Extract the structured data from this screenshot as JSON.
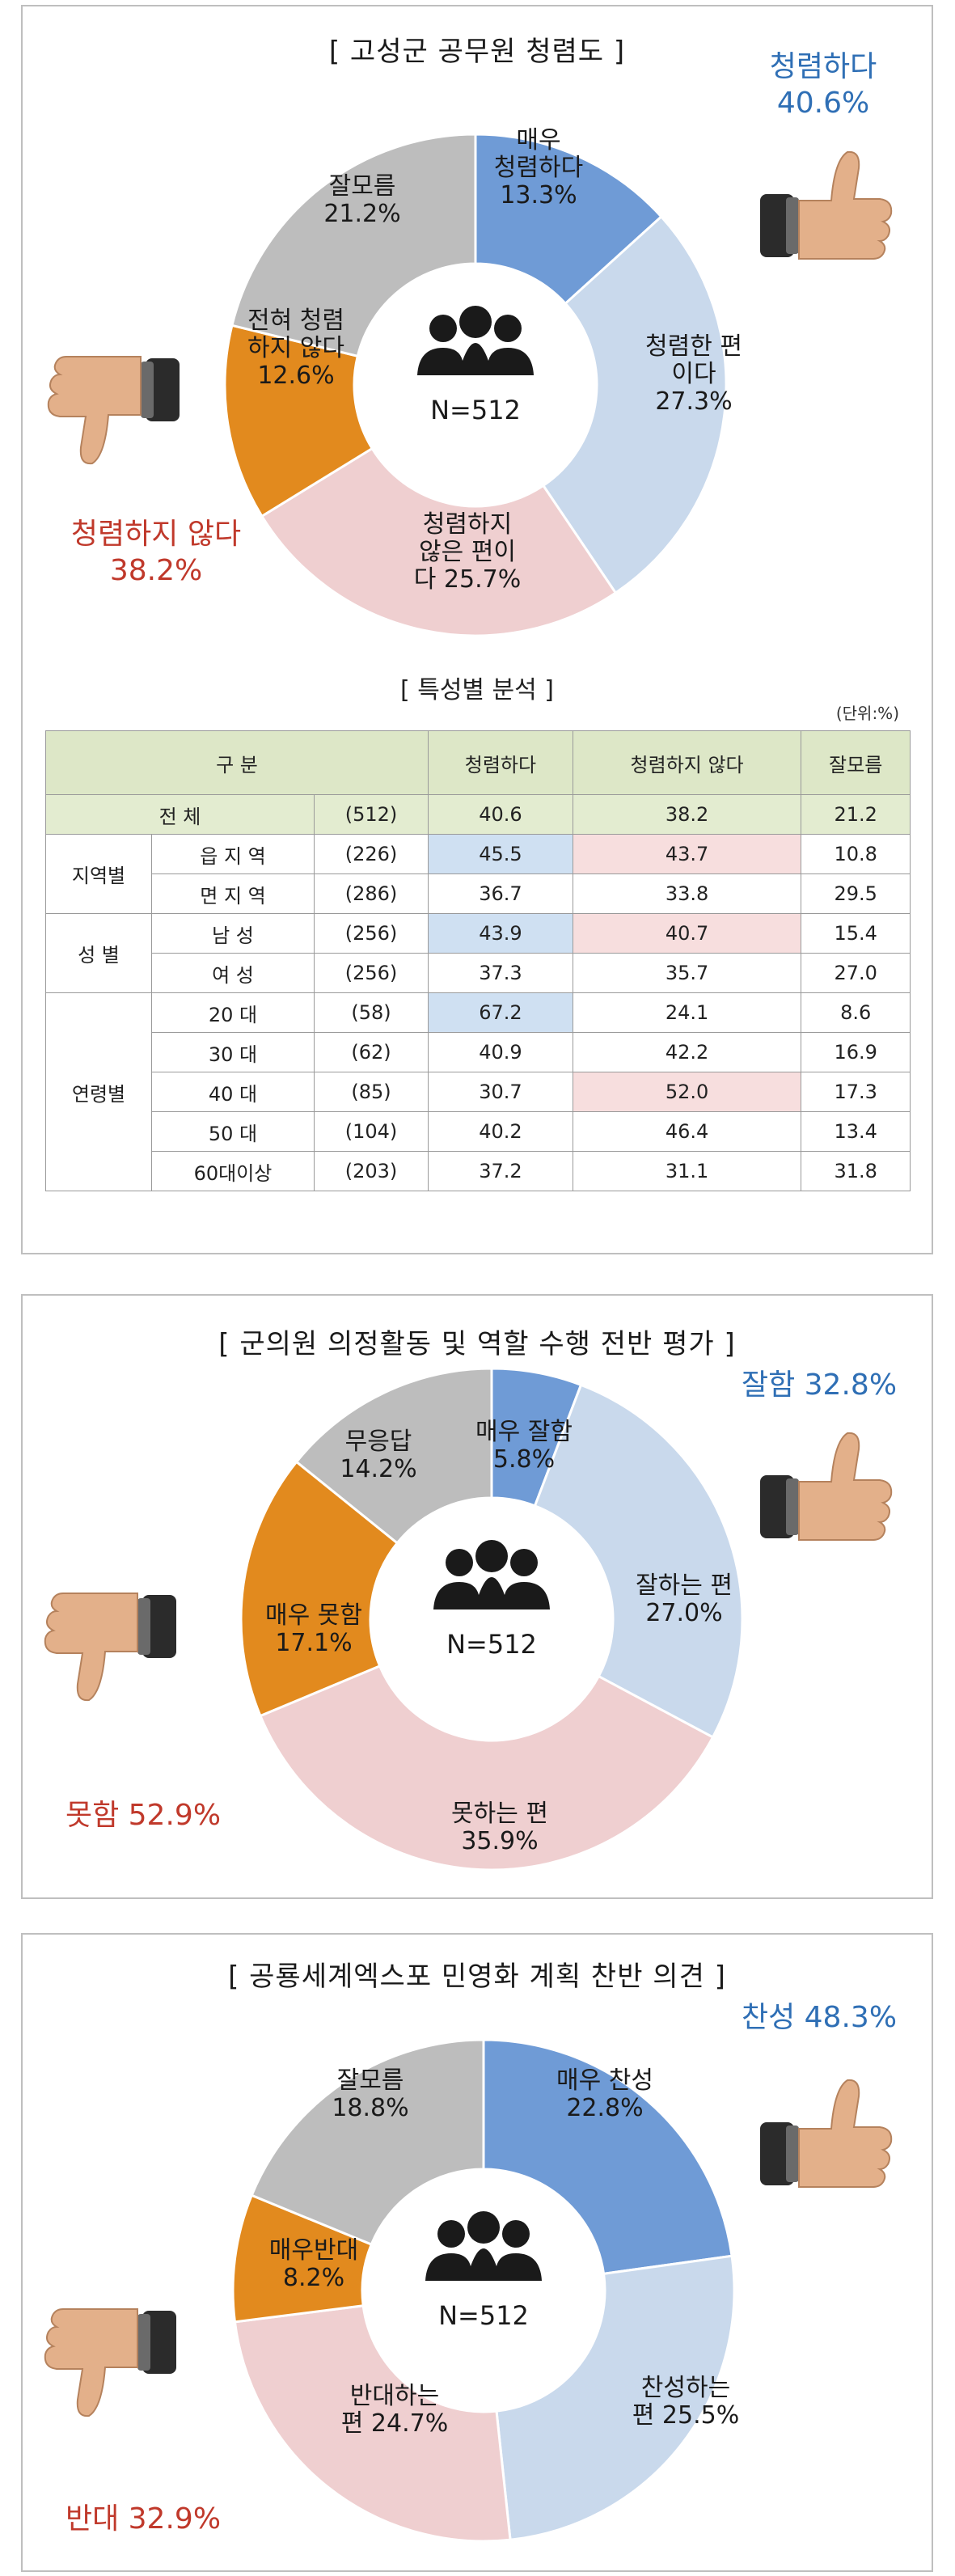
{
  "panel1": {
    "title": "[ 고성군 공무원 청렴도 ]",
    "positive": {
      "label": "청렴하다",
      "value": "40.6%"
    },
    "negative": {
      "label": "청렴하지 않다",
      "value": "38.2%"
    },
    "center": "N=512",
    "table": {
      "title": "[ 특성별 분석 ]",
      "unit": "(단위:%)",
      "headers": [
        "구  분",
        "청렴하다",
        "청렴하지 않다",
        "잘모름"
      ],
      "total": {
        "label": "전      체",
        "n": "(512)",
        "values": [
          "40.6",
          "38.2",
          "21.2"
        ]
      },
      "groups": [
        {
          "name": "지역별",
          "rows": [
            {
              "label": "읍 지 역",
              "n": "(226)",
              "values": [
                "45.5",
                "43.7",
                "10.8"
              ],
              "hl": [
                "b",
                "r",
                ""
              ]
            },
            {
              "label": "면 지 역",
              "n": "(286)",
              "values": [
                "36.7",
                "33.8",
                "29.5"
              ],
              "hl": [
                "",
                "",
                ""
              ]
            }
          ]
        },
        {
          "name": "성  별",
          "rows": [
            {
              "label": "남    성",
              "n": "(256)",
              "values": [
                "43.9",
                "40.7",
                "15.4"
              ],
              "hl": [
                "b",
                "r",
                ""
              ]
            },
            {
              "label": "여    성",
              "n": "(256)",
              "values": [
                "37.3",
                "35.7",
                "27.0"
              ],
              "hl": [
                "",
                "",
                ""
              ]
            }
          ]
        },
        {
          "name": "연령별",
          "rows": [
            {
              "label": "20    대",
              "n": "(58)",
              "values": [
                "67.2",
                "24.1",
                "8.6"
              ],
              "hl": [
                "b",
                "",
                ""
              ]
            },
            {
              "label": "30    대",
              "n": "(62)",
              "values": [
                "40.9",
                "42.2",
                "16.9"
              ],
              "hl": [
                "",
                "",
                ""
              ]
            },
            {
              "label": "40    대",
              "n": "(85)",
              "values": [
                "30.7",
                "52.0",
                "17.3"
              ],
              "hl": [
                "",
                "r",
                ""
              ]
            },
            {
              "label": "50    대",
              "n": "(104)",
              "values": [
                "40.2",
                "46.4",
                "13.4"
              ],
              "hl": [
                "",
                "",
                ""
              ]
            },
            {
              "label": "60대이상",
              "n": "(203)",
              "values": [
                "37.2",
                "31.1",
                "31.8"
              ],
              "hl": [
                "",
                "",
                ""
              ]
            }
          ]
        }
      ]
    }
  },
  "panel2": {
    "title": "[ 군의원 의정활동 및 역할 수행 전반 평가 ]",
    "positive": {
      "label": "잘함",
      "value": "32.8%"
    },
    "negative": {
      "label": "못함",
      "value": "52.9%"
    },
    "center": "N=512"
  },
  "panel3": {
    "title": "[ 공룡세계엑스포 민영화 계획 찬반 의견 ]",
    "positive": {
      "label": "찬성",
      "value": "48.3%"
    },
    "negative": {
      "label": "반대",
      "value": "32.9%"
    },
    "center": "N=512"
  },
  "colors": {
    "very_positive": "#6f9bd6",
    "positive": "#c9d9ec",
    "negative": "#efcfd0",
    "very_negative": "#e28a1e",
    "unknown": "#bdbdbd"
  },
  "chart_data": [
    {
      "type": "pie",
      "title": "[ 고성군 공무원 청렴도 ]",
      "categories": [
        "매우 청렴하다",
        "청렴한 편이다",
        "청렴하지 않은 편이다",
        "전혀 청렴하지 않다",
        "잘모름"
      ],
      "labels": [
        "매우\n청렴하다\n13.3%",
        "청렴한 편\n이다\n27.3%",
        "청렴하지\n않은 편이\n다 25.7%",
        "전혀 청렴\n하지 않다\n12.6%",
        "잘모름\n21.2%"
      ],
      "values": [
        13.3,
        27.3,
        25.7,
        12.6,
        21.2
      ]
    },
    {
      "type": "pie",
      "title": "[ 군의원 의정활동 및 역할 수행 전반 평가 ]",
      "categories": [
        "매우 잘함",
        "잘하는 편",
        "못하는 편",
        "매우 못함",
        "무응답"
      ],
      "labels": [
        "매우 잘함\n5.8%",
        "잘하는 편\n27.0%",
        "못하는 편\n35.9%",
        "매우 못함\n17.1%",
        "무응답\n14.2%"
      ],
      "values": [
        5.8,
        27.0,
        35.9,
        17.1,
        14.2
      ]
    },
    {
      "type": "pie",
      "title": "[ 공룡세계엑스포 민영화 계획 찬반 의견 ]",
      "categories": [
        "매우 찬성",
        "찬성하는 편",
        "반대하는 편",
        "매우반대",
        "잘모름"
      ],
      "labels": [
        "매우 찬성\n22.8%",
        "찬성하는\n편 25.5%",
        "반대하는\n편 24.7%",
        "매우반대\n8.2%",
        "잘모름\n18.8%"
      ],
      "values": [
        22.8,
        25.5,
        24.7,
        8.2,
        18.8
      ]
    }
  ]
}
